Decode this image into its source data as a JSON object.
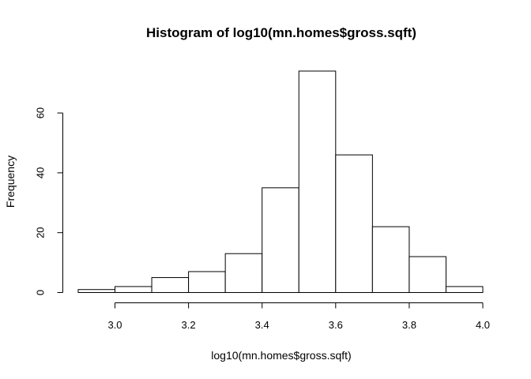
{
  "chart_data": {
    "type": "bar",
    "title": "Histogram of log10(mn.homes$gross.sqft)",
    "xlabel": "log10(mn.homes$gross.sqft)",
    "ylabel": "Frequency",
    "bins": [
      {
        "start": 2.9,
        "end": 3.0,
        "count": 1
      },
      {
        "start": 3.0,
        "end": 3.1,
        "count": 2
      },
      {
        "start": 3.1,
        "end": 3.2,
        "count": 5
      },
      {
        "start": 3.2,
        "end": 3.3,
        "count": 7
      },
      {
        "start": 3.3,
        "end": 3.4,
        "count": 13
      },
      {
        "start": 3.4,
        "end": 3.5,
        "count": 35
      },
      {
        "start": 3.5,
        "end": 3.6,
        "count": 74
      },
      {
        "start": 3.6,
        "end": 3.7,
        "count": 46
      },
      {
        "start": 3.7,
        "end": 3.8,
        "count": 22
      },
      {
        "start": 3.8,
        "end": 3.9,
        "count": 12
      },
      {
        "start": 3.9,
        "end": 4.0,
        "count": 2
      }
    ],
    "xlim": [
      2.9,
      4.0
    ],
    "ylim": [
      0,
      74
    ],
    "x_ticks": [
      "3.0",
      "3.2",
      "3.4",
      "3.6",
      "3.8",
      "4.0"
    ],
    "y_ticks": [
      "0",
      "20",
      "40",
      "60"
    ],
    "grid": false,
    "legend": "none",
    "colors": {
      "bar_fill": "#ffffff",
      "bar_stroke": "#000000"
    }
  }
}
